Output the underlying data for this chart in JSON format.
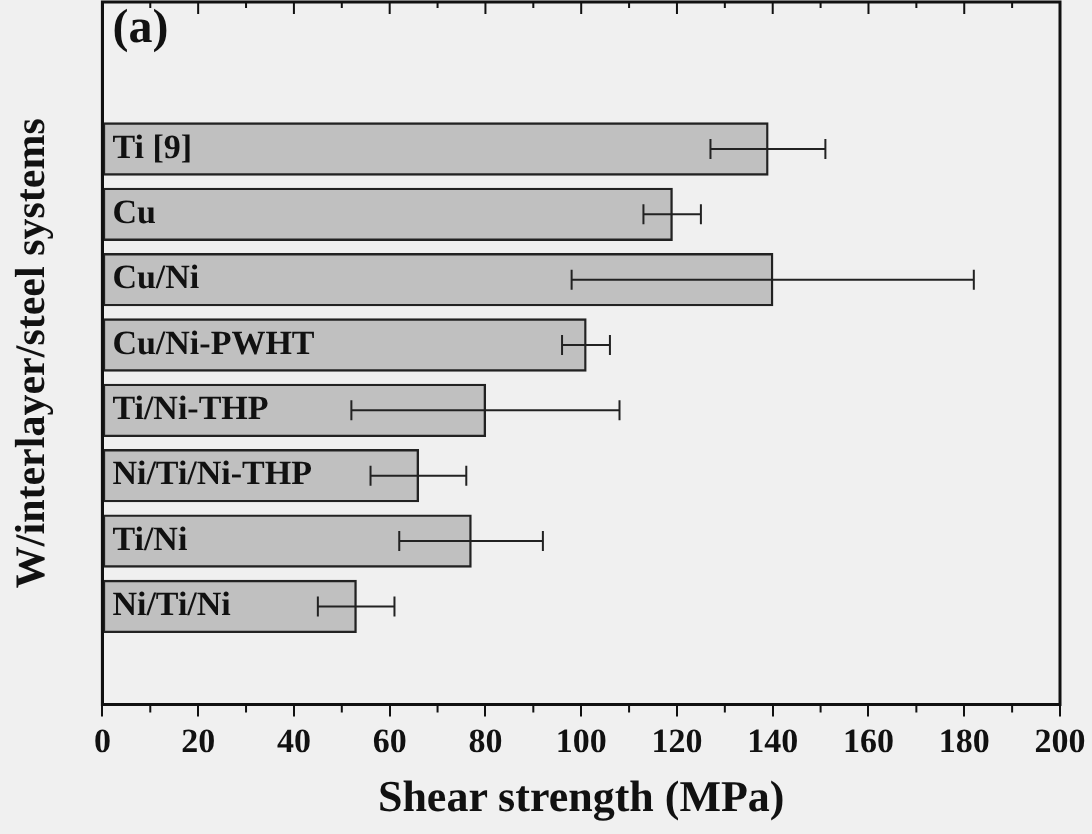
{
  "chart_data": {
    "type": "bar",
    "orientation": "horizontal",
    "title": "(a)",
    "xlabel": "Shear strength (MPa)",
    "ylabel": "W/interlayer/steel systems",
    "categories": [
      "Ti [9]",
      "Cu",
      "Cu/Ni",
      "Cu/Ni-PWHT",
      "Ti/Ni-THP",
      "Ni/Ti/Ni-THP",
      "Ti/Ni",
      "Ni/Ti/Ni"
    ],
    "values": [
      139,
      119,
      140,
      101,
      80,
      66,
      77,
      53
    ],
    "errors": [
      12,
      6,
      42,
      5,
      28,
      10,
      15,
      8
    ],
    "color": "#c0c0c0",
    "xlim": [
      0,
      200
    ],
    "xticks": [
      0,
      20,
      40,
      60,
      80,
      100,
      120,
      140,
      160,
      180,
      200
    ],
    "grid": false,
    "legend": false
  }
}
